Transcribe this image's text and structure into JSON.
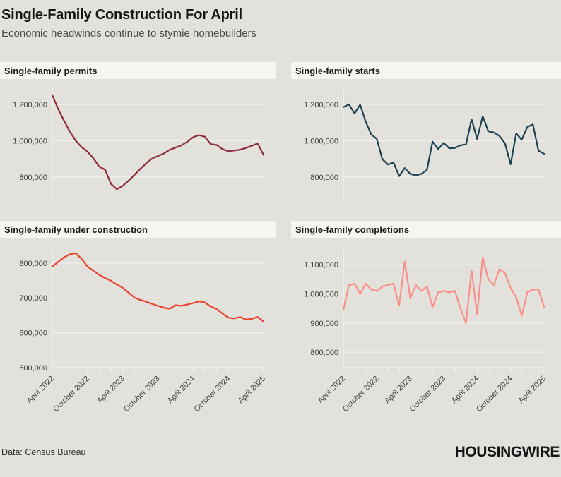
{
  "header": {
    "title": "Single-Family Construction For April",
    "subtitle": "Economic headwinds continue to stymie homebuilders"
  },
  "footer": {
    "source": "Data: Census Bureau",
    "brand": "HOUSINGWIRE"
  },
  "colors": {
    "background": "#e3e1dc",
    "panel_header_bg": "#f7f5f0",
    "axis": "#f2f0ea",
    "tick_label": "#424242"
  },
  "x_axis": {
    "start": "April 2022",
    "end": "April 2025",
    "interval": "monthly",
    "tick_labels": [
      "April 2022",
      "October 2022",
      "April 2023",
      "October 2023",
      "April 2024",
      "October 2024",
      "April 2025"
    ],
    "major_tick_every_months": 6,
    "minor_tick_every_months": 2
  },
  "chart_data": [
    {
      "type": "line",
      "title": "Single-family permits",
      "line_color": "#8e2d3a",
      "x_tick_labels": [
        "April 2022",
        "October 2022",
        "April 2023",
        "October 2023",
        "April 2024",
        "October 2024",
        "April 2025"
      ],
      "values": [
        1251000,
        1175000,
        1110000,
        1050000,
        1000000,
        965000,
        940000,
        903000,
        858000,
        840000,
        762000,
        733000,
        752000,
        780000,
        812000,
        845000,
        876000,
        902000,
        916000,
        930000,
        950000,
        962000,
        974000,
        994000,
        1019000,
        1031000,
        1022000,
        981000,
        977000,
        954000,
        942000,
        946000,
        951000,
        960000,
        972000,
        985000,
        922000
      ],
      "ylim": [
        656000,
        1293000
      ],
      "yticks": [
        {
          "value": 800000,
          "label": "800,000"
        },
        {
          "value": 1000000,
          "label": "1,000,000"
        },
        {
          "value": 1200000,
          "label": "1,200,000"
        }
      ],
      "grid": true,
      "legend": "none",
      "show_x_labels": false
    },
    {
      "type": "line",
      "title": "Single-family starts",
      "line_color": "#1c4354",
      "x_tick_labels": [
        "April 2022",
        "October 2022",
        "April 2023",
        "October 2023",
        "April 2024",
        "October 2024",
        "April 2025"
      ],
      "values": [
        1185000,
        1200000,
        1150000,
        1198000,
        1105000,
        1035000,
        1010000,
        898000,
        869000,
        880000,
        805000,
        850000,
        817000,
        810000,
        817000,
        840000,
        995000,
        954000,
        988000,
        958000,
        960000,
        975000,
        980000,
        1118000,
        1010000,
        1135000,
        1052000,
        1045000,
        1026000,
        985000,
        870000,
        1040000,
        1005000,
        1075000,
        1090000,
        945000,
        928000
      ],
      "ylim": [
        656000,
        1293000
      ],
      "yticks": [
        {
          "value": 800000,
          "label": "800,000"
        },
        {
          "value": 1000000,
          "label": "1,000,000"
        },
        {
          "value": 1200000,
          "label": "1,200,000"
        }
      ],
      "grid": true,
      "legend": "none",
      "show_x_labels": false
    },
    {
      "type": "line",
      "title": "Single-family under construction",
      "line_color": "#e8432f",
      "x_tick_labels": [
        "April 2022",
        "October 2022",
        "April 2023",
        "October 2023",
        "April 2024",
        "October 2024",
        "April 2025"
      ],
      "values": [
        790000,
        803000,
        816000,
        825000,
        828000,
        812000,
        790000,
        778000,
        766000,
        757000,
        749000,
        738000,
        729000,
        715000,
        701000,
        694000,
        689000,
        683000,
        677000,
        672000,
        669000,
        679000,
        677000,
        681000,
        685000,
        690000,
        687000,
        675000,
        668000,
        655000,
        643000,
        641000,
        645000,
        638000,
        640000,
        645000,
        632000
      ],
      "ylim": [
        500000,
        842000
      ],
      "yticks": [
        {
          "value": 500000,
          "label": "500,000"
        },
        {
          "value": 600000,
          "label": "600,000"
        },
        {
          "value": 700000,
          "label": "700,000"
        },
        {
          "value": 800000,
          "label": "800,000"
        }
      ],
      "grid": true,
      "legend": "none",
      "show_x_labels": true
    },
    {
      "type": "line",
      "title": "Single-family completions",
      "line_color": "#f98f87",
      "x_tick_labels": [
        "April 2022",
        "October 2022",
        "April 2023",
        "October 2023",
        "April 2024",
        "October 2024",
        "April 2025"
      ],
      "values": [
        945000,
        1030000,
        1035000,
        1000000,
        1035000,
        1015000,
        1010000,
        1025000,
        1030000,
        1035000,
        960000,
        1110000,
        985000,
        1030000,
        1010000,
        1025000,
        955000,
        1005000,
        1010000,
        1005000,
        1010000,
        950000,
        900000,
        1080000,
        930000,
        1125000,
        1050000,
        1030000,
        1085000,
        1070000,
        1020000,
        988000,
        925000,
        1005000,
        1015000,
        1015000,
        955000
      ],
      "ylim": [
        747000,
        1156000
      ],
      "yticks": [
        {
          "value": 800000,
          "label": "800,000"
        },
        {
          "value": 900000,
          "label": "900,000"
        },
        {
          "value": 1000000,
          "label": "1,000,000"
        },
        {
          "value": 1100000,
          "label": "1,100,000"
        }
      ],
      "grid": true,
      "legend": "none",
      "show_x_labels": true
    }
  ]
}
